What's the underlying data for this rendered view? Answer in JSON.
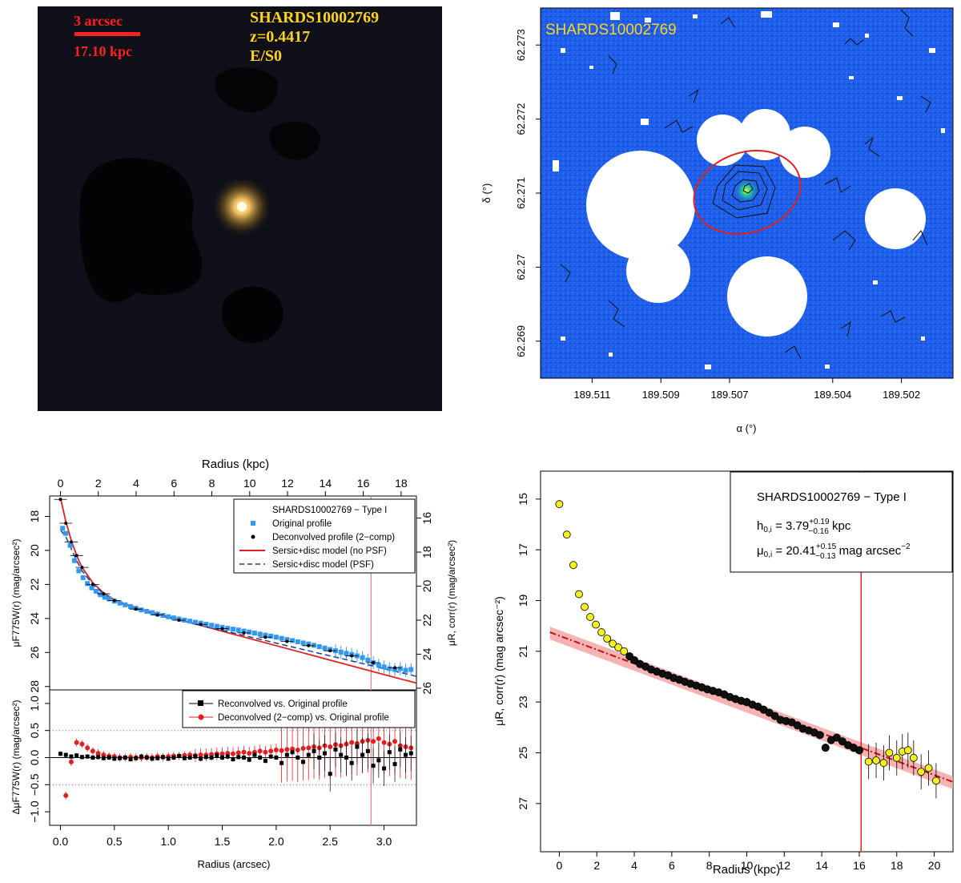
{
  "chart_data": [
    {
      "type": "image",
      "panel": "color-image",
      "scale_bar_arcsec": "3 arcsec",
      "scale_bar_kpc": "17.10 kpc",
      "object_name": "SHARDS10002769",
      "redshift": "z=0.4417",
      "morphology": "E/S0"
    },
    {
      "type": "image",
      "panel": "masked-map",
      "title": "SHARDS10002769",
      "xlabel": "α (°)",
      "ylabel": "δ (°)",
      "x_ticks": [
        "189.511",
        "189.509",
        "189.507",
        "189.504",
        "189.502"
      ],
      "y_ticks": [
        "62.273",
        "62.272",
        "62.271",
        "62.27",
        "62.269"
      ],
      "xlim": [
        189.5125,
        189.5005
      ],
      "ylim": [
        62.2685,
        62.2735
      ]
    },
    {
      "type": "scatter",
      "panel": "profile",
      "top_axis_label": "Radius (kpc)",
      "top_ticks": [
        0,
        2,
        4,
        6,
        8,
        10,
        12,
        14,
        16,
        18
      ],
      "xlabel": "Radius (arcsec)",
      "x_ticks": [
        0.0,
        0.5,
        1.0,
        1.5,
        2.0,
        2.5,
        3.0
      ],
      "x_tick_labels": [
        "0.0",
        "0.5",
        "1.0",
        "1.5",
        "2.0",
        "2.5",
        "3.0"
      ],
      "xlim": [
        -0.1,
        3.3
      ],
      "ylabel_left": "μF775W(r) (mag/arcsec²)",
      "ylabel_right": "μR, corr(r) (mag/arcsec²)",
      "ylim": [
        28.2,
        16.8
      ],
      "y_left_ticks": [
        18,
        20,
        22,
        24,
        26,
        28
      ],
      "y_right_ticks": [
        16,
        18,
        20,
        22,
        24,
        26
      ],
      "right_axis_offset": 2.1,
      "vline_x": 2.88,
      "legend": {
        "title": "SHARDS10002769  −  Type I",
        "entries": [
          "Original profile",
          "Deconvolved profile (2−comp)",
          "Sersic+disc model (no PSF)",
          "Sersic+disc model (PSF)"
        ]
      },
      "original_profile": {
        "x": [
          0.02,
          0.05,
          0.09,
          0.13,
          0.17,
          0.21,
          0.25,
          0.29,
          0.33,
          0.37,
          0.41,
          0.45,
          0.5,
          0.55,
          0.6,
          0.65,
          0.7,
          0.75,
          0.8,
          0.85,
          0.9,
          0.95,
          1.0,
          1.05,
          1.1,
          1.15,
          1.2,
          1.25,
          1.3,
          1.35,
          1.4,
          1.45,
          1.5,
          1.55,
          1.6,
          1.65,
          1.7,
          1.75,
          1.8,
          1.85,
          1.9,
          1.95,
          2.0,
          2.05,
          2.1,
          2.15,
          2.2,
          2.25,
          2.3,
          2.35,
          2.4,
          2.45,
          2.5,
          2.55,
          2.6,
          2.65,
          2.7,
          2.75,
          2.8,
          2.85,
          2.9,
          2.95,
          3.0,
          3.05,
          3.1,
          3.15,
          3.2,
          3.25
        ],
        "y": [
          18.7,
          19.0,
          19.7,
          20.6,
          21.2,
          21.6,
          21.95,
          22.2,
          22.4,
          22.6,
          22.75,
          22.85,
          22.98,
          23.1,
          23.2,
          23.3,
          23.4,
          23.5,
          23.58,
          23.66,
          23.74,
          23.82,
          23.9,
          23.97,
          24.03,
          24.1,
          24.16,
          24.22,
          24.28,
          24.34,
          24.4,
          24.46,
          24.52,
          24.58,
          24.63,
          24.68,
          24.74,
          24.8,
          24.86,
          24.92,
          24.98,
          25.04,
          25.1,
          25.17,
          25.24,
          25.3,
          25.37,
          25.44,
          25.5,
          25.58,
          25.66,
          25.74,
          25.82,
          25.9,
          25.98,
          26.05,
          26.12,
          26.2,
          26.3,
          26.45,
          26.6,
          26.75,
          26.85,
          26.95,
          27.0,
          26.95,
          27.05,
          27.0
        ]
      },
      "deconvolved_profile": {
        "x": [
          0.0,
          0.05,
          0.1,
          0.15,
          0.2,
          0.3,
          0.4,
          0.5,
          0.7,
          0.9,
          1.1,
          1.3,
          1.5,
          1.7,
          1.9,
          2.1,
          2.3,
          2.5,
          2.7,
          2.9,
          3.1
        ],
        "y": [
          17.0,
          18.4,
          19.5,
          20.3,
          21.0,
          22.0,
          22.55,
          22.95,
          23.45,
          23.8,
          24.1,
          24.35,
          24.6,
          24.85,
          25.1,
          25.35,
          25.6,
          25.9,
          26.2,
          26.6,
          26.9
        ]
      },
      "model_no_psf": {
        "x": [
          0.0,
          0.05,
          0.1,
          0.15,
          0.2,
          0.3,
          0.4,
          0.5,
          0.7,
          1.0,
          1.5,
          2.0,
          2.5,
          3.0,
          3.3
        ],
        "y": [
          16.9,
          18.3,
          19.4,
          20.3,
          21.0,
          21.9,
          22.5,
          22.9,
          23.4,
          23.9,
          24.75,
          25.6,
          26.45,
          27.3,
          27.8
        ]
      },
      "model_psf": {
        "x": [
          0.0,
          0.05,
          0.1,
          0.15,
          0.2,
          0.3,
          0.4,
          0.5,
          0.7,
          1.0,
          1.5,
          2.0,
          2.5,
          3.0,
          3.3
        ],
        "y": [
          18.8,
          19.2,
          19.9,
          20.6,
          21.2,
          22.0,
          22.55,
          22.95,
          23.45,
          23.95,
          24.7,
          25.45,
          26.2,
          26.95,
          27.4
        ]
      }
    },
    {
      "type": "scatter",
      "panel": "residuals",
      "xlabel": "Radius (arcsec)",
      "ylabel": "ΔμF775W(r) (mag/arcsec²)",
      "ylim": [
        -1.25,
        1.25
      ],
      "y_ticks": [
        -1.0,
        -0.5,
        0.0,
        0.5,
        1.0
      ],
      "y_tick_labels": [
        "−1.0",
        "−0.5",
        "0.0",
        "0.5",
        "1.0"
      ],
      "dotted_levels": [
        0.5,
        -0.5
      ],
      "legend": {
        "entries": [
          "Reconvolved vs. Original profile",
          "Deconvolved (2−comp) vs. Original profile"
        ]
      },
      "reconvolved": {
        "x": [
          0.0,
          0.05,
          0.1,
          0.15,
          0.2,
          0.25,
          0.3,
          0.35,
          0.4,
          0.45,
          0.5,
          0.55,
          0.6,
          0.65,
          0.7,
          0.75,
          0.8,
          0.85,
          0.9,
          0.95,
          1.0,
          1.05,
          1.1,
          1.15,
          1.2,
          1.25,
          1.3,
          1.35,
          1.4,
          1.45,
          1.5,
          1.55,
          1.6,
          1.65,
          1.7,
          1.75,
          1.8,
          1.85,
          1.9,
          1.95,
          2.0,
          2.05,
          2.1,
          2.15,
          2.2,
          2.25,
          2.3,
          2.35,
          2.4,
          2.45,
          2.5,
          2.55,
          2.6,
          2.65,
          2.7,
          2.75,
          2.8,
          2.85,
          2.9,
          2.95,
          3.0,
          3.05,
          3.1,
          3.15,
          3.2,
          3.25
        ],
        "y": [
          0.07,
          0.05,
          0.02,
          0.04,
          0.01,
          0.02,
          0.0,
          0.01,
          -0.01,
          0.0,
          -0.02,
          -0.01,
          0.0,
          -0.03,
          -0.01,
          0.02,
          0.0,
          -0.02,
          -0.01,
          0.01,
          -0.02,
          0.0,
          0.03,
          -0.01,
          0.0,
          0.02,
          -0.02,
          0.01,
          0.0,
          0.04,
          0.0,
          0.02,
          -0.03,
          0.01,
          0.0,
          -0.04,
          0.05,
          0.0,
          -0.06,
          0.02,
          0.0,
          -0.1,
          0.05,
          0.1,
          0.0,
          -0.08,
          0.05,
          0.12,
          0.0,
          0.08,
          -0.3,
          0.15,
          0.05,
          0.0,
          -0.1,
          0.2,
          0.05,
          0.12,
          -0.15,
          -0.05,
          -0.2,
          0.1,
          -0.12,
          0.15,
          0.05,
          0.08
        ]
      },
      "deconvolved": {
        "x": [
          0.05,
          0.1,
          0.15,
          0.2,
          0.25,
          0.3,
          0.35,
          0.4,
          0.45,
          0.5,
          0.55,
          0.6,
          0.65,
          0.7,
          0.75,
          0.8,
          0.85,
          0.9,
          0.95,
          1.0,
          1.05,
          1.1,
          1.15,
          1.2,
          1.25,
          1.3,
          1.35,
          1.4,
          1.45,
          1.5,
          1.55,
          1.6,
          1.65,
          1.7,
          1.75,
          1.8,
          1.85,
          1.9,
          1.95,
          2.0,
          2.05,
          2.1,
          2.15,
          2.2,
          2.25,
          2.3,
          2.35,
          2.4,
          2.45,
          2.5,
          2.55,
          2.6,
          2.65,
          2.7,
          2.75,
          2.8,
          2.85,
          2.9,
          2.95,
          3.0,
          3.05,
          3.1,
          3.15,
          3.2,
          3.25
        ],
        "y": [
          -0.7,
          -0.08,
          0.28,
          0.25,
          0.18,
          0.12,
          0.08,
          0.05,
          0.03,
          0.02,
          0.0,
          0.0,
          0.01,
          0.0,
          0.0,
          0.01,
          0.0,
          0.02,
          0.01,
          0.02,
          0.03,
          0.03,
          0.04,
          0.05,
          0.04,
          0.05,
          0.05,
          0.06,
          0.07,
          0.07,
          0.08,
          0.07,
          0.09,
          0.1,
          0.08,
          0.1,
          0.12,
          0.1,
          0.12,
          0.14,
          0.13,
          0.15,
          0.16,
          0.14,
          0.17,
          0.18,
          0.2,
          0.18,
          0.22,
          0.2,
          0.24,
          0.22,
          0.25,
          0.28,
          0.26,
          0.3,
          0.32,
          0.3,
          0.35,
          0.28,
          0.25,
          0.3,
          0.22,
          0.2,
          0.18
        ]
      }
    },
    {
      "type": "scatter",
      "panel": "fitted-profile",
      "xlabel": "Radius (kpc)",
      "ylabel": "μR, corr(r) (mag arcsec⁻²)",
      "xlim": [
        -1,
        21
      ],
      "ylim": [
        28.9,
        13.9
      ],
      "x_ticks": [
        0,
        2,
        4,
        6,
        8,
        10,
        12,
        14,
        16,
        18,
        20
      ],
      "y_ticks": [
        15,
        17,
        19,
        21,
        23,
        25,
        27
      ],
      "vline_x": 16.1,
      "legend": {
        "title": "SHARDS10002769  − Type I",
        "h0": "h0,i = 3.79+0.19−0.16 kpc",
        "h0_symbol": "h",
        "h0_sub": "0,i",
        "h0_value": " = 3.79",
        "h0_err_up": "+0.19",
        "h0_err_down": "−0.16",
        "h0_unit": " kpc",
        "mu0_symbol": "μ",
        "mu0_sub": "0,i",
        "mu0_value": " = 20.41",
        "mu0_err_up": "+0.15",
        "mu0_err_down": "−0.13",
        "mu0_unit": " mag arcsec",
        "mu0_exp": "−2"
      },
      "fit_line": {
        "x": [
          -0.5,
          21
        ],
        "y": [
          20.25,
          26.15
        ]
      },
      "inner_points": {
        "x": [
          0.0,
          0.4,
          0.75,
          1.05,
          1.35,
          1.65,
          1.95,
          2.25,
          2.55,
          2.85,
          3.15,
          3.45
        ],
        "y": [
          15.2,
          16.4,
          17.6,
          18.75,
          19.25,
          19.65,
          19.95,
          20.25,
          20.5,
          20.7,
          20.85,
          21.0
        ]
      },
      "mid_points": {
        "x": [
          3.75,
          4.0,
          4.3,
          4.6,
          4.9,
          5.2,
          5.5,
          5.8,
          6.1,
          6.4,
          6.7,
          7.0,
          7.3,
          7.6,
          7.9,
          8.2,
          8.5,
          8.8,
          9.1,
          9.4,
          9.7,
          10.0,
          10.3,
          10.6,
          10.9,
          11.2,
          11.5,
          11.8,
          12.1,
          12.4,
          12.7,
          13.0,
          13.3,
          13.6,
          13.9,
          14.2,
          14.5,
          14.8,
          15.1,
          15.4,
          15.7,
          16.0
        ],
        "y": [
          21.2,
          21.35,
          21.5,
          21.6,
          21.72,
          21.8,
          21.88,
          21.95,
          22.05,
          22.12,
          22.2,
          22.28,
          22.35,
          22.42,
          22.5,
          22.56,
          22.62,
          22.7,
          22.8,
          22.88,
          22.95,
          23.0,
          23.1,
          23.18,
          23.3,
          23.42,
          23.55,
          23.7,
          23.75,
          23.8,
          23.92,
          24.05,
          24.12,
          24.2,
          24.3,
          24.8,
          24.5,
          24.4,
          24.55,
          24.7,
          24.8,
          24.9
        ]
      },
      "outer_points": {
        "x": [
          16.5,
          16.9,
          17.3,
          17.6,
          18.0,
          18.3,
          18.6,
          18.9,
          19.3,
          19.7,
          20.1
        ],
        "y": [
          25.35,
          25.3,
          25.4,
          25.0,
          25.2,
          24.95,
          24.9,
          25.2,
          25.75,
          25.6,
          26.1
        ]
      }
    }
  ]
}
